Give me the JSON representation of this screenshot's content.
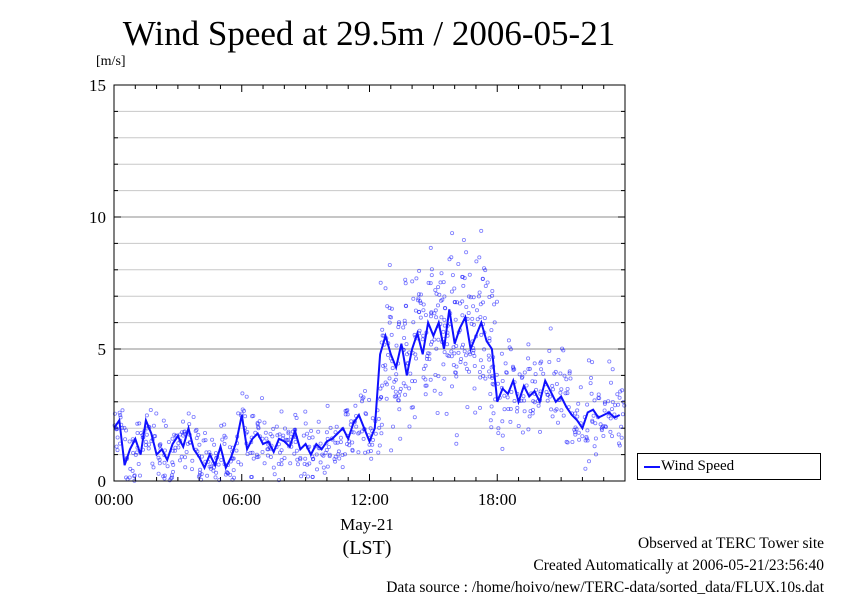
{
  "title": "Wind Speed at 29.5m / 2006-05-21",
  "unit_label": "[m/s]",
  "legend": {
    "label": "Wind Speed",
    "color": "#1010ff"
  },
  "date_label": "May-21",
  "lst_label": "(LST)",
  "footer": {
    "line1": "Observed at TERC Tower site",
    "line2": "Created Automatically at 2006-05-21/23:56:40",
    "line3": "Data source : /home/hoivo/new/TERC-data/sorted_data/FLUX.10s.dat"
  },
  "chart_data": {
    "type": "line",
    "x_unit": "hour of day (LST)",
    "xlim": [
      0,
      24
    ],
    "ylim": [
      0,
      15
    ],
    "x_ticks": [
      0,
      6,
      12,
      18
    ],
    "x_tick_labels": [
      "00:00",
      "06:00",
      "12:00",
      "18:00"
    ],
    "y_ticks": [
      0,
      5,
      10,
      15
    ],
    "y_tick_labels": [
      "0",
      "5",
      "10",
      "15"
    ],
    "y_minor_step": 1,
    "grid": true,
    "legend_position": "right-bottom",
    "series": [
      {
        "name": "Wind Speed",
        "style": "line with scattered 10-second samples",
        "x": [
          0.0,
          0.25,
          0.5,
          0.75,
          1.0,
          1.25,
          1.5,
          1.75,
          2.0,
          2.25,
          2.5,
          2.75,
          3.0,
          3.25,
          3.5,
          3.75,
          4.0,
          4.25,
          4.5,
          4.75,
          5.0,
          5.25,
          5.5,
          5.75,
          6.0,
          6.25,
          6.5,
          6.75,
          7.0,
          7.25,
          7.5,
          7.75,
          8.0,
          8.25,
          8.5,
          8.75,
          9.0,
          9.25,
          9.5,
          9.75,
          10.0,
          10.25,
          10.5,
          10.75,
          11.0,
          11.25,
          11.5,
          11.75,
          12.0,
          12.25,
          12.5,
          12.75,
          13.0,
          13.25,
          13.5,
          13.75,
          14.0,
          14.25,
          14.5,
          14.75,
          15.0,
          15.25,
          15.5,
          15.75,
          16.0,
          16.25,
          16.5,
          16.75,
          17.0,
          17.25,
          17.5,
          17.75,
          18.0,
          18.25,
          18.5,
          18.75,
          19.0,
          19.25,
          19.5,
          19.75,
          20.0,
          20.25,
          20.5,
          20.75,
          21.0,
          21.25,
          21.5,
          21.75,
          22.0,
          22.25,
          22.5,
          22.75,
          23.0,
          23.25,
          23.5,
          23.75
        ],
        "values": [
          2.0,
          2.3,
          0.6,
          1.2,
          1.6,
          1.0,
          2.3,
          1.8,
          1.0,
          1.2,
          0.8,
          1.4,
          1.7,
          1.3,
          2.0,
          1.2,
          0.9,
          0.5,
          1.0,
          0.6,
          1.3,
          0.5,
          0.9,
          1.5,
          2.5,
          1.2,
          1.6,
          1.8,
          1.4,
          1.5,
          1.1,
          1.6,
          1.5,
          1.3,
          1.9,
          1.2,
          1.4,
          1.0,
          1.4,
          1.2,
          1.5,
          1.6,
          1.8,
          2.0,
          1.6,
          2.2,
          2.5,
          2.0,
          1.5,
          2.0,
          4.8,
          5.5,
          4.8,
          4.3,
          5.2,
          4.0,
          5.0,
          5.6,
          4.8,
          6.0,
          5.5,
          6.0,
          5.0,
          6.5,
          5.2,
          5.8,
          6.2,
          5.0,
          5.5,
          6.0,
          5.3,
          5.0,
          3.0,
          3.5,
          3.3,
          3.8,
          3.0,
          3.6,
          3.2,
          3.4,
          3.0,
          3.8,
          3.4,
          3.0,
          3.2,
          2.8,
          2.5,
          2.3,
          2.0,
          2.6,
          2.7,
          2.4,
          2.5,
          2.6,
          2.4,
          2.5
        ]
      }
    ]
  }
}
